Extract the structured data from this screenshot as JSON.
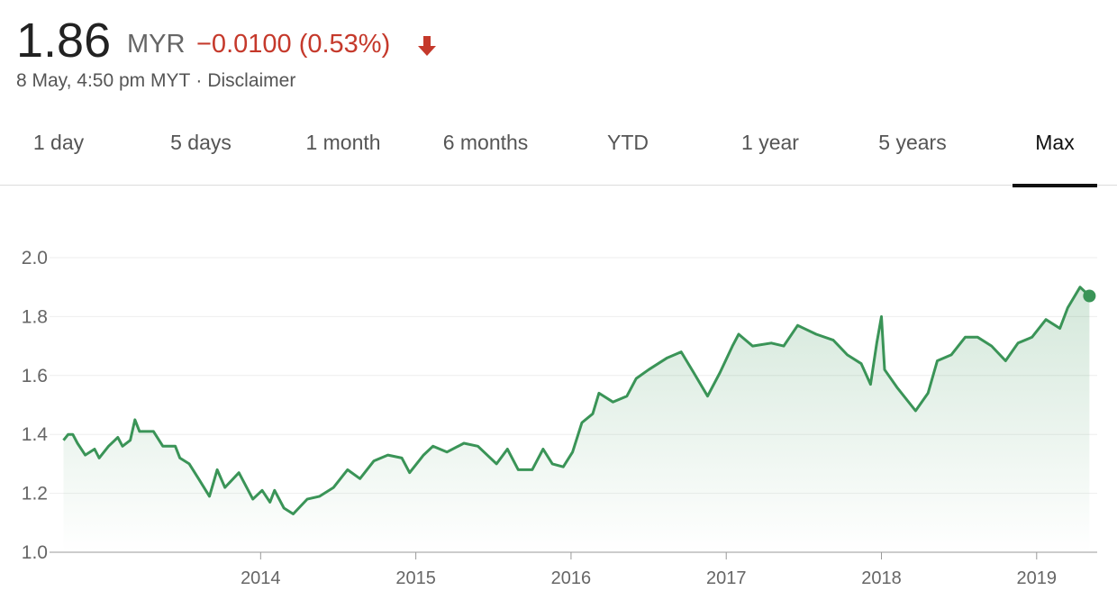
{
  "header": {
    "price": "1.86",
    "currency": "MYR",
    "change": "−0.0100 (0.53%)",
    "timestamp": "8 May, 4:50 pm MYT",
    "separator": "·",
    "disclaimer": "Disclaimer"
  },
  "tabs": {
    "items": [
      "1 day",
      "5 days",
      "1 month",
      "6 months",
      "YTD",
      "1 year",
      "5 years",
      "Max"
    ],
    "selected": 7
  },
  "chart_data": {
    "type": "line",
    "color": "#3a9457",
    "area": true,
    "end_marker": true,
    "grid": true,
    "x": [
      2012.73,
      2012.76,
      2012.79,
      2012.82,
      2012.87,
      2012.93,
      2012.96,
      2013.02,
      2013.08,
      2013.11,
      2013.16,
      2013.19,
      2013.22,
      2013.31,
      2013.37,
      2013.45,
      2013.48,
      2013.54,
      2013.6,
      2013.67,
      2013.72,
      2013.77,
      2013.86,
      2013.95,
      2014.01,
      2014.06,
      2014.09,
      2014.15,
      2014.21,
      2014.3,
      2014.38,
      2014.47,
      2014.56,
      2014.64,
      2014.73,
      2014.82,
      2014.91,
      2014.96,
      2015.05,
      2015.11,
      2015.2,
      2015.31,
      2015.4,
      2015.52,
      2015.59,
      2015.66,
      2015.75,
      2015.82,
      2015.88,
      2015.95,
      2016.01,
      2016.07,
      2016.14,
      2016.18,
      2016.27,
      2016.36,
      2016.42,
      2016.5,
      2016.62,
      2016.71,
      2016.79,
      2016.88,
      2016.96,
      2017.04,
      2017.08,
      2017.17,
      2017.29,
      2017.37,
      2017.46,
      2017.58,
      2017.69,
      2017.78,
      2017.87,
      2017.93,
      2017.97,
      2018.0,
      2018.02,
      2018.1,
      2018.22,
      2018.3,
      2018.36,
      2018.45,
      2018.54,
      2018.62,
      2018.71,
      2018.8,
      2018.88,
      2018.97,
      2019.06,
      2019.15,
      2019.2,
      2019.28,
      2019.34
    ],
    "values": [
      1.38,
      1.4,
      1.4,
      1.37,
      1.33,
      1.35,
      1.32,
      1.36,
      1.39,
      1.36,
      1.38,
      1.45,
      1.41,
      1.41,
      1.36,
      1.36,
      1.32,
      1.3,
      1.25,
      1.19,
      1.28,
      1.22,
      1.27,
      1.18,
      1.21,
      1.17,
      1.21,
      1.15,
      1.13,
      1.18,
      1.19,
      1.22,
      1.28,
      1.25,
      1.31,
      1.33,
      1.32,
      1.27,
      1.33,
      1.36,
      1.34,
      1.37,
      1.36,
      1.3,
      1.35,
      1.28,
      1.28,
      1.35,
      1.3,
      1.29,
      1.34,
      1.44,
      1.47,
      1.54,
      1.51,
      1.53,
      1.59,
      1.62,
      1.66,
      1.68,
      1.61,
      1.53,
      1.61,
      1.7,
      1.74,
      1.7,
      1.71,
      1.7,
      1.77,
      1.74,
      1.72,
      1.67,
      1.64,
      1.57,
      1.71,
      1.8,
      1.62,
      1.56,
      1.48,
      1.54,
      1.65,
      1.67,
      1.73,
      1.73,
      1.7,
      1.65,
      1.71,
      1.73,
      1.79,
      1.76,
      1.83,
      1.9,
      1.87
    ],
    "xlim": [
      2012.64,
      2019.39
    ],
    "xticks": [
      2014,
      2015,
      2016,
      2017,
      2018,
      2019
    ],
    "ylim": [
      1.0,
      2.0
    ],
    "yticks": [
      {
        "value": 1.0,
        "label": "1.0"
      },
      1.2,
      1.4,
      1.6,
      1.8,
      {
        "value": 2.0,
        "label": "2.0"
      }
    ]
  }
}
